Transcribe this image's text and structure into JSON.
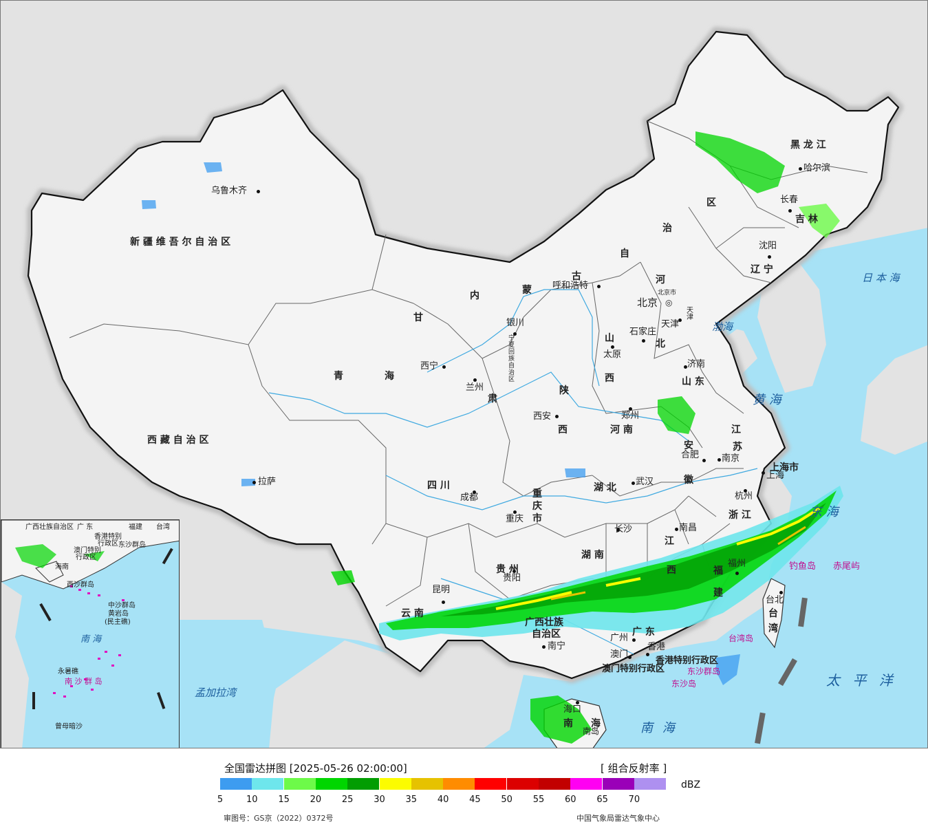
{
  "legend": {
    "title": "全国雷达拼图 [2025-05-26 02:00:00]",
    "product": "[ 组合反射率 ]",
    "unit": "dBZ",
    "scale": [
      {
        "value": "5",
        "color": "#3d9cf0"
      },
      {
        "value": "10",
        "color": "#6ee6ec"
      },
      {
        "value": "15",
        "color": "#6dfa49"
      },
      {
        "value": "20",
        "color": "#00d600"
      },
      {
        "value": "25",
        "color": "#029d02"
      },
      {
        "value": "30",
        "color": "#fcfc00"
      },
      {
        "value": "35",
        "color": "#e6c200"
      },
      {
        "value": "40",
        "color": "#ff8c00"
      },
      {
        "value": "45",
        "color": "#ff0000"
      },
      {
        "value": "50",
        "color": "#dc0000"
      },
      {
        "value": "55",
        "color": "#c20000"
      },
      {
        "value": "60",
        "color": "#ff00f2"
      },
      {
        "value": "65",
        "color": "#9a00b8"
      },
      {
        "value": "70",
        "color": "#ae90f0"
      }
    ],
    "review_number": "审图号：GS京（2022）0372号",
    "organization": "中国气象局雷达气象中心"
  },
  "map": {
    "provinces": {
      "xinjiang": "新 疆 维 吾 尔 自 治 区",
      "xizang": "西 藏 自 治 区",
      "qinghai": [
        "青",
        "海"
      ],
      "gansu": [
        "甘",
        "肃"
      ],
      "neimenggu": [
        "内",
        "蒙",
        "古",
        "自",
        "治",
        "区"
      ],
      "heilongjiang": "黑 龙 江",
      "jilin": "吉 林",
      "liaoning": "辽 宁",
      "hebei": [
        "河",
        "北"
      ],
      "shanxi": [
        "山",
        "西"
      ],
      "shandong": "山 东",
      "shaanxi": [
        "陕",
        "西"
      ],
      "henan": "河 南",
      "jiangsu": [
        "江",
        "苏"
      ],
      "anhui": [
        "安",
        "徽"
      ],
      "shanghai": "上海市",
      "zhejiang": "浙 江",
      "sichuan": "四 川",
      "chongqing": [
        "重",
        "庆",
        "市"
      ],
      "hubei": "湖 北",
      "hunan": "湖 南",
      "jiangxi": [
        "江",
        "西"
      ],
      "fujian": [
        "福",
        "建"
      ],
      "guizhou": "贵 州",
      "yunnan": "云 南",
      "guangxi": [
        "广西壮族",
        "自治区"
      ],
      "guangdong": "广 东",
      "hainan": [
        "海",
        "南"
      ],
      "taiwan": [
        "台",
        "湾"
      ],
      "hk": "香港特别行政区",
      "macau": "澳门特别行政区",
      "ningxia": "宁夏回族自治区",
      "beijing_label": "北京市",
      "tianjin_label": "天津"
    },
    "cities": {
      "urumqi": "乌鲁木齐",
      "lhasa": "拉萨",
      "xining": "西宁",
      "lanzhou": "兰州",
      "yinchuan": "银川",
      "hohhot": "呼和浩特",
      "beijing": "北京",
      "tianjin": "天津",
      "shijiazhuang": "石家庄",
      "taiyuan": "太原",
      "jinan": "济南",
      "zhengzhou": "郑州",
      "xian": "西安",
      "hefei": "合肥",
      "nanjing": "南京",
      "shanghai": "上海",
      "hangzhou": "杭州",
      "wuhan": "武汉",
      "chengdu": "成都",
      "chongqing": "重庆",
      "changsha": "长沙",
      "nanchang": "南昌",
      "fuzhou": "福州",
      "guiyang": "贵阳",
      "kunming": "昆明",
      "nanning": "南宁",
      "guangzhou": "广州",
      "hongkong": "香港",
      "macau": "澳门",
      "haikou": "海口",
      "taibei": "台北",
      "harbin": "哈尔滨",
      "changchun": "长春",
      "shenyang": "沈阳"
    },
    "seas": {
      "bohai": "渤海",
      "huanghai": "黄 海",
      "donghai": "东 海",
      "nanhai": "南 海",
      "japan": "日 本 海",
      "pacific": "太 平 洋",
      "bengal": "孟加拉湾"
    },
    "islands": {
      "diaoyu": "钓鱼岛",
      "chiwei": "赤尾屿",
      "taiwan_island": "台湾岛",
      "dongsha_islands": "东沙群岛",
      "dongsha_island": "东沙岛",
      "hainan_island": "南岛"
    },
    "inset": {
      "guangxi": "广西壮族自治区",
      "guangdong": "广 东",
      "fujian": "福建",
      "taiwan": "台湾",
      "hk": "香港特别",
      "hk2": "行政区",
      "macau": "澳门特别",
      "macau2": "行政区",
      "dongsha": "东沙群岛",
      "hainan": "海南",
      "xisha": "西沙群岛",
      "zhongsha": "中沙群岛",
      "huangyan": "黄岩岛",
      "huangyan2": "(民主礁)",
      "nanhai": "南  海",
      "yongshu": "永暑礁",
      "nansha": "南 沙 群 岛",
      "zengmu": "曾母暗沙"
    }
  }
}
